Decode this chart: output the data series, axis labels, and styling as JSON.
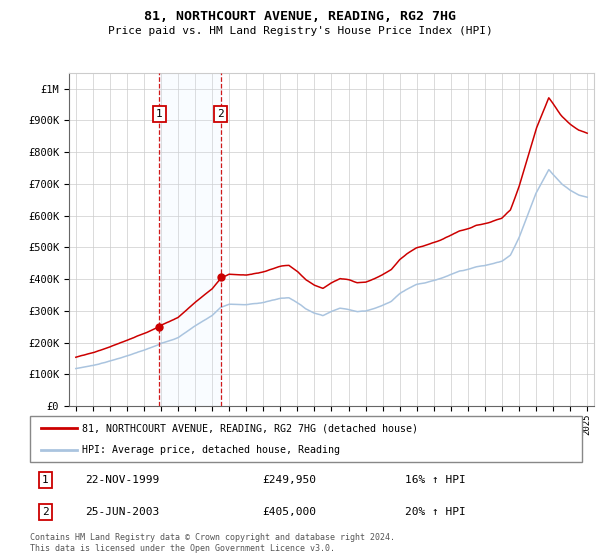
{
  "title": "81, NORTHCOURT AVENUE, READING, RG2 7HG",
  "subtitle": "Price paid vs. HM Land Registry's House Price Index (HPI)",
  "legend_line1": "81, NORTHCOURT AVENUE, READING, RG2 7HG (detached house)",
  "legend_line2": "HPI: Average price, detached house, Reading",
  "transaction1_date": "22-NOV-1999",
  "transaction1_price": "£249,950",
  "transaction1_hpi": "16% ↑ HPI",
  "transaction2_date": "25-JUN-2003",
  "transaction2_price": "£405,000",
  "transaction2_hpi": "20% ↑ HPI",
  "footer": "Contains HM Land Registry data © Crown copyright and database right 2024.\nThis data is licensed under the Open Government Licence v3.0.",
  "sale1_year": 1999.89,
  "sale1_price": 249950,
  "sale2_year": 2003.49,
  "sale2_price": 405000,
  "ylim": [
    0,
    1050000
  ],
  "yticks": [
    0,
    100000,
    200000,
    300000,
    400000,
    500000,
    600000,
    700000,
    800000,
    900000,
    1000000
  ],
  "ytick_labels": [
    "£0",
    "£100K",
    "£200K",
    "£300K",
    "£400K",
    "£500K",
    "£600K",
    "£700K",
    "£800K",
    "£900K",
    "£1M"
  ],
  "hpi_color": "#aac4df",
  "price_color": "#cc0000",
  "grid_color": "#cccccc",
  "shade_color": "#ddeeff"
}
